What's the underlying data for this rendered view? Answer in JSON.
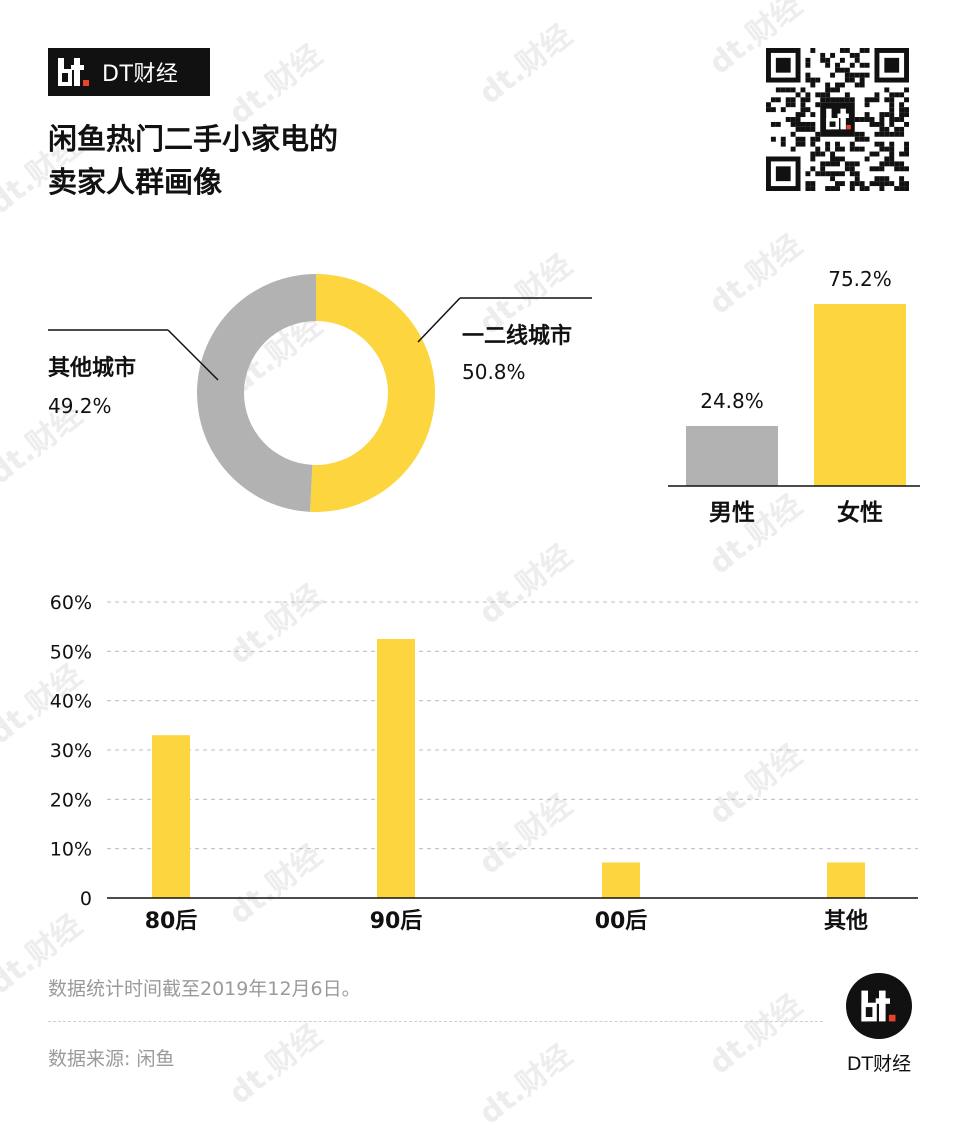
{
  "brand": {
    "logo_text": "dt",
    "name": "DT财经"
  },
  "title": {
    "line1": "闲鱼热门二手小家电的",
    "line2": "卖家人群画像"
  },
  "watermark_text": "dt.财经",
  "colors": {
    "yellow": "#fcd53f",
    "gray": "#b2b2b2",
    "dark": "#111111",
    "grid": "#bdbdbd",
    "muted": "#9a9a9a"
  },
  "chart_data": [
    {
      "type": "pie",
      "variant": "donut",
      "slices": [
        {
          "label": "一二线城市",
          "value": 50.8,
          "display": "50.8%",
          "color": "#fcd53f"
        },
        {
          "label": "其他城市",
          "value": 49.2,
          "display": "49.2%",
          "color": "#b2b2b2"
        }
      ]
    },
    {
      "type": "bar",
      "categories": [
        "男性",
        "女性"
      ],
      "values": [
        24.8,
        75.2
      ],
      "value_labels": [
        "24.8%",
        "75.2%"
      ],
      "colors": [
        "#b2b2b2",
        "#fcd53f"
      ]
    },
    {
      "type": "bar",
      "categories": [
        "80后",
        "90后",
        "00后",
        "其他"
      ],
      "values": [
        33,
        52.5,
        7.2,
        7.2
      ],
      "ylim": [
        0,
        60
      ],
      "yticks": [
        0,
        10,
        20,
        30,
        40,
        50,
        60
      ],
      "ytick_labels": [
        "0",
        "10%",
        "20%",
        "30%",
        "40%",
        "50%",
        "60%"
      ],
      "grid": true,
      "color": "#fcd53f"
    }
  ],
  "footer": {
    "note": "数据统计时间截至2019年12月6日。",
    "source": "数据来源: 闲鱼",
    "badge_text": "DT财经"
  }
}
